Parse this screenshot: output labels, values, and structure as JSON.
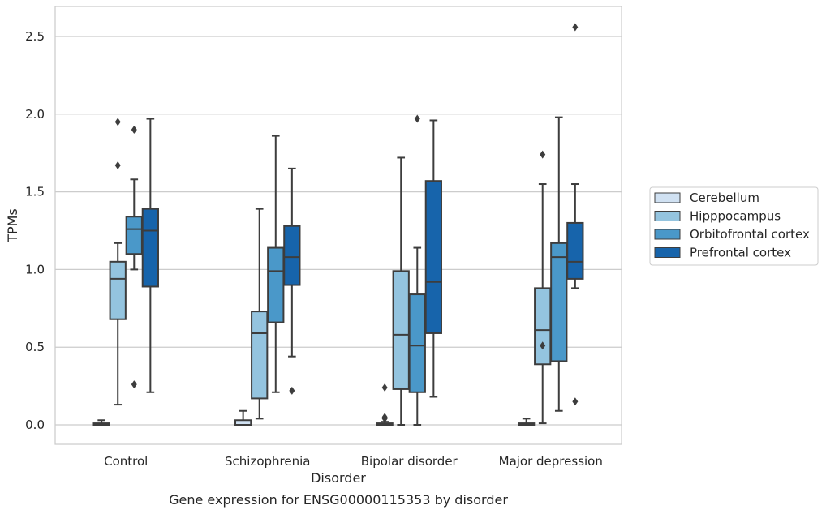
{
  "chart_data": {
    "type": "box",
    "caption": "Gene expression for ENSG00000115353 by disorder",
    "xlabel": "Disorder",
    "ylabel": "TPMs",
    "ylim": [
      -0.12,
      2.69
    ],
    "yticks": [
      0.0,
      0.5,
      1.0,
      1.5,
      2.0,
      2.5
    ],
    "ytick_labels": [
      "0.0",
      "0.5",
      "1.0",
      "1.5",
      "2.0",
      "2.5"
    ],
    "grid": "horizontal",
    "legend_position": "right",
    "categories": [
      "Control",
      "Schizophrenia",
      "Bipolar disorder",
      "Major depression"
    ],
    "series": [
      {
        "name": "Cerebellum",
        "color": "#d0e1f2",
        "boxes": [
          {
            "whisker_low": 0.0,
            "q1": 0.0,
            "median": 0.0,
            "q3": 0.01,
            "whisker_high": 0.03,
            "outliers": []
          },
          {
            "whisker_low": 0.0,
            "q1": 0.0,
            "median": 0.0,
            "q3": 0.03,
            "whisker_high": 0.09,
            "outliers": []
          },
          {
            "whisker_low": 0.0,
            "q1": 0.0,
            "median": 0.0,
            "q3": 0.01,
            "whisker_high": 0.02,
            "outliers": [
              0.24,
              0.05,
              0.04
            ]
          },
          {
            "whisker_low": 0.0,
            "q1": 0.0,
            "median": 0.0,
            "q3": 0.01,
            "whisker_high": 0.04,
            "outliers": []
          }
        ]
      },
      {
        "name": "Hipppocampus",
        "color": "#94c4df",
        "boxes": [
          {
            "whisker_low": 0.13,
            "q1": 0.68,
            "median": 0.94,
            "q3": 1.05,
            "whisker_high": 1.17,
            "outliers": [
              1.67,
              1.95
            ]
          },
          {
            "whisker_low": 0.04,
            "q1": 0.17,
            "median": 0.59,
            "q3": 0.73,
            "whisker_high": 1.39,
            "outliers": []
          },
          {
            "whisker_low": 0.0,
            "q1": 0.23,
            "median": 0.58,
            "q3": 0.99,
            "whisker_high": 1.72,
            "outliers": []
          },
          {
            "whisker_low": 0.01,
            "q1": 0.39,
            "median": 0.61,
            "q3": 0.88,
            "whisker_high": 1.55,
            "outliers": [
              0.51,
              1.74
            ]
          }
        ]
      },
      {
        "name": "Orbitofrontal cortex",
        "color": "#4a98c9",
        "boxes": [
          {
            "whisker_low": 1.0,
            "q1": 1.1,
            "median": 1.26,
            "q3": 1.34,
            "whisker_high": 1.58,
            "outliers": [
              0.26,
              1.9
            ]
          },
          {
            "whisker_low": 0.21,
            "q1": 0.66,
            "median": 0.99,
            "q3": 1.14,
            "whisker_high": 1.86,
            "outliers": []
          },
          {
            "whisker_low": 0.0,
            "q1": 0.21,
            "median": 0.51,
            "q3": 0.84,
            "whisker_high": 1.14,
            "outliers": [
              1.97
            ]
          },
          {
            "whisker_low": 0.09,
            "q1": 0.41,
            "median": 1.08,
            "q3": 1.17,
            "whisker_high": 1.98,
            "outliers": []
          }
        ]
      },
      {
        "name": "Prefrontal cortex",
        "color": "#1764ab",
        "boxes": [
          {
            "whisker_low": 0.21,
            "q1": 0.89,
            "median": 1.25,
            "q3": 1.39,
            "whisker_high": 1.97,
            "outliers": []
          },
          {
            "whisker_low": 0.44,
            "q1": 0.9,
            "median": 1.08,
            "q3": 1.28,
            "whisker_high": 1.65,
            "outliers": [
              0.22
            ]
          },
          {
            "whisker_low": 0.18,
            "q1": 0.59,
            "median": 0.92,
            "q3": 1.57,
            "whisker_high": 1.96,
            "outliers": []
          },
          {
            "whisker_low": 0.88,
            "q1": 0.94,
            "median": 1.05,
            "q3": 1.3,
            "whisker_high": 1.55,
            "outliers": [
              0.15,
              2.56
            ]
          }
        ]
      }
    ]
  }
}
